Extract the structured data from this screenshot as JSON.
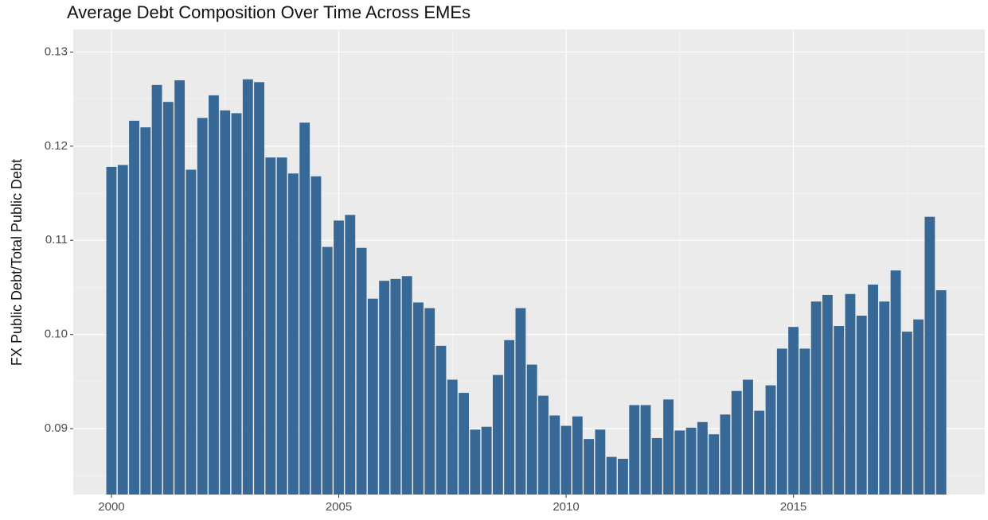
{
  "chart_data": {
    "type": "bar",
    "title": "Average Debt Composition Over Time Across EMEs",
    "y_label": "FX Public Debt/Total Public Debt",
    "x": [
      2000,
      2000.25,
      2000.5,
      2000.75,
      2001,
      2001.25,
      2001.5,
      2001.75,
      2002,
      2002.25,
      2002.5,
      2002.75,
      2003,
      2003.25,
      2003.5,
      2003.75,
      2004,
      2004.25,
      2004.5,
      2004.75,
      2005,
      2005.25,
      2005.5,
      2005.75,
      2006,
      2006.25,
      2006.5,
      2006.75,
      2007,
      2007.25,
      2007.5,
      2007.75,
      2008,
      2008.25,
      2008.5,
      2008.75,
      2009,
      2009.25,
      2009.5,
      2009.75,
      2010,
      2010.25,
      2010.5,
      2010.75,
      2011,
      2011.25,
      2011.5,
      2011.75,
      2012,
      2012.25,
      2012.5,
      2012.75,
      2013,
      2013.25,
      2013.5,
      2013.75,
      2014,
      2014.25,
      2014.5,
      2014.75,
      2015,
      2015.25,
      2015.5,
      2015.75,
      2016,
      2016.25,
      2016.5,
      2016.75,
      2017,
      2017.25,
      2017.5,
      2017.75,
      2018,
      2018.25
    ],
    "values": [
      0.1178,
      0.118,
      0.1227,
      0.122,
      0.1265,
      0.1247,
      0.127,
      0.1175,
      0.123,
      0.1254,
      0.1238,
      0.1235,
      0.1271,
      0.1268,
      0.1188,
      0.1188,
      0.1171,
      0.1225,
      0.1168,
      0.1093,
      0.1121,
      0.1127,
      0.1092,
      0.1038,
      0.1057,
      0.1059,
      0.1062,
      0.1034,
      0.1028,
      0.0988,
      0.0952,
      0.0938,
      0.0899,
      0.0902,
      0.0957,
      0.0994,
      0.1028,
      0.0968,
      0.0935,
      0.0914,
      0.0903,
      0.0913,
      0.0889,
      0.0899,
      0.087,
      0.0868,
      0.0925,
      0.0925,
      0.089,
      0.0931,
      0.0898,
      0.0901,
      0.0907,
      0.0894,
      0.0915,
      0.094,
      0.0952,
      0.0919,
      0.0946,
      0.0985,
      0.1008,
      0.0985,
      0.1035,
      0.1042,
      0.1009,
      0.1043,
      0.102,
      0.1053,
      0.1035,
      0.1068,
      0.1003,
      0.1016,
      0.1125,
      0.1047
    ],
    "color": "#376896",
    "xlim": [
      1999.16,
      2019.21
    ],
    "xticks": [
      2000,
      2005,
      2010,
      2015
    ],
    "ylim": [
      0.083,
      0.1324
    ],
    "yticks": [
      0.09,
      {
        "value": 0.1,
        "label": "0.10"
      },
      0.11,
      0.12,
      0.13
    ],
    "grid": true
  }
}
